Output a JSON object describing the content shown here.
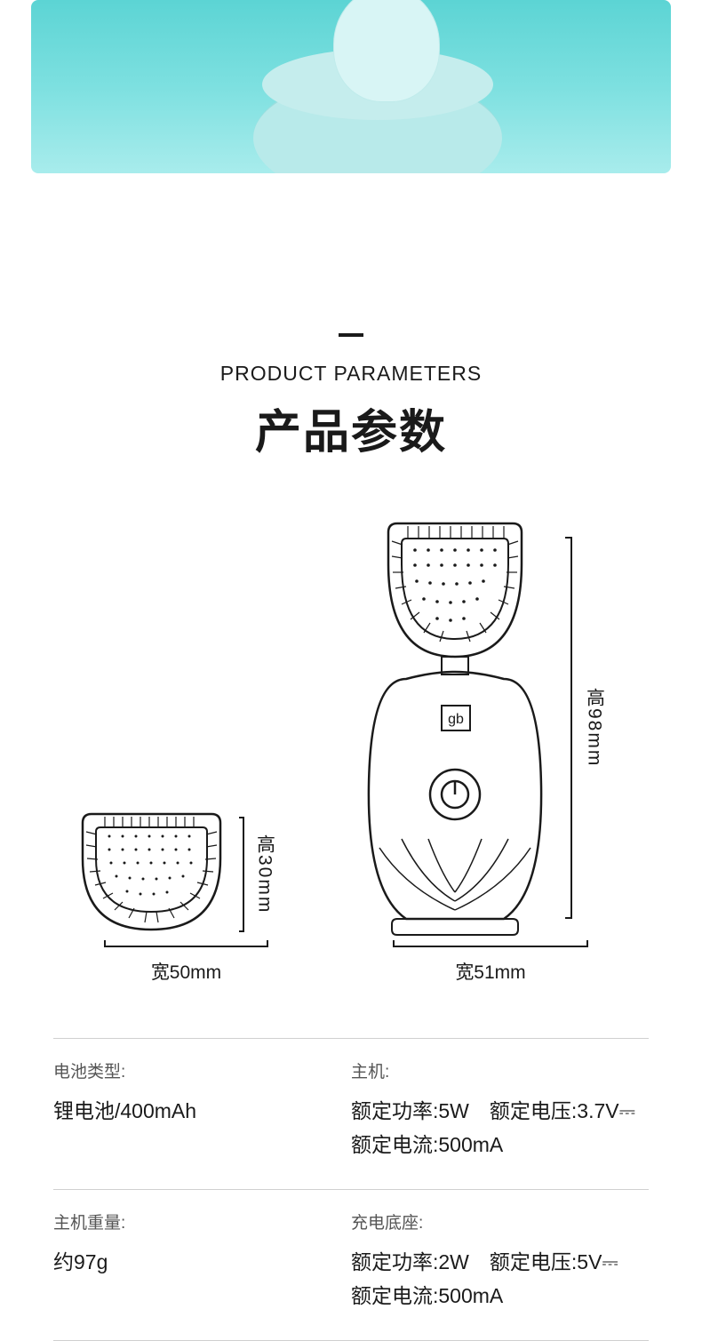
{
  "header": {
    "subtitle": "PRODUCT PARAMETERS",
    "title": "产品参数"
  },
  "diagram": {
    "small": {
      "height_label": "高30mm",
      "width_label": "宽50mm",
      "stroke_color": "#1a1a1a"
    },
    "large": {
      "height_label": "高98mm",
      "width_label": "宽51mm",
      "logo": "gb",
      "stroke_color": "#1a1a1a"
    }
  },
  "specs": {
    "rows": [
      {
        "left_label": "电池类型:",
        "left_value": "锂电池/400mAh",
        "right_label": "主机:",
        "right_value": "额定功率:5W　额定电压:3.7V⎓\n额定电流:500mA"
      },
      {
        "left_label": "主机重量:",
        "left_value": "约97g",
        "right_label": "充电底座:",
        "right_value": "额定功率:2W　额定电压:5V⎓\n额定电流:500mA"
      }
    ]
  },
  "colors": {
    "text": "#1a1a1a",
    "label_text": "#555555",
    "divider": "#d0d0d0",
    "hero_bg_top": "#5cd4d4",
    "hero_bg_bottom": "#a8ecec"
  },
  "typography": {
    "subtitle_fontsize": 23,
    "title_fontsize": 52,
    "dim_label_fontsize": 21,
    "spec_label_fontsize": 19,
    "spec_value_fontsize": 23
  }
}
